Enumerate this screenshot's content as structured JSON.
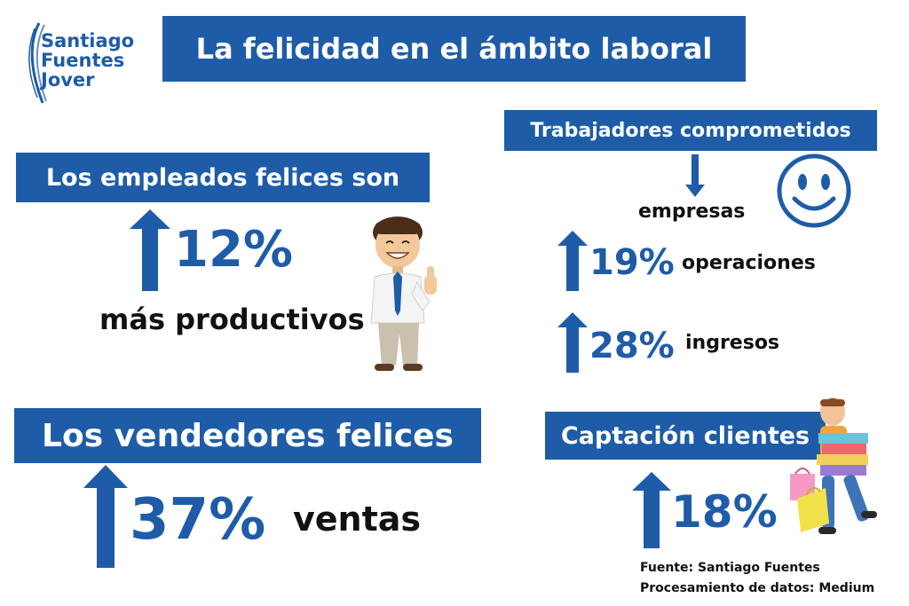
{
  "logo": {
    "line1": "Santiago",
    "line2": "Fuentes",
    "line3": "Jover"
  },
  "title": "La felicidad en el ámbito laboral",
  "left": {
    "heading": "Los empleados felices son",
    "stat": "12%",
    "text": "más productivos"
  },
  "right": {
    "heading": "Trabajadores comprometidos",
    "sub": "empresas",
    "items": [
      {
        "pct": "19%",
        "label": "operaciones"
      },
      {
        "pct": "28%",
        "label": "ingresos"
      }
    ]
  },
  "sales": {
    "heading": "Los vendedores felices",
    "stat": "37%",
    "label": "ventas"
  },
  "clients": {
    "heading": "Captación clientes",
    "stat": "18%"
  },
  "source": {
    "line1": "Fuente: Santiago Fuentes",
    "line2": "Procesamiento de datos: Medium"
  },
  "colors": {
    "accent": "#1e5ca8",
    "text": "#111111"
  },
  "icons": [
    "up-arrow-icon",
    "down-arrow-icon",
    "smiley-icon",
    "businessman-thumbs-up-illustration",
    "shopper-with-gifts-illustration"
  ]
}
